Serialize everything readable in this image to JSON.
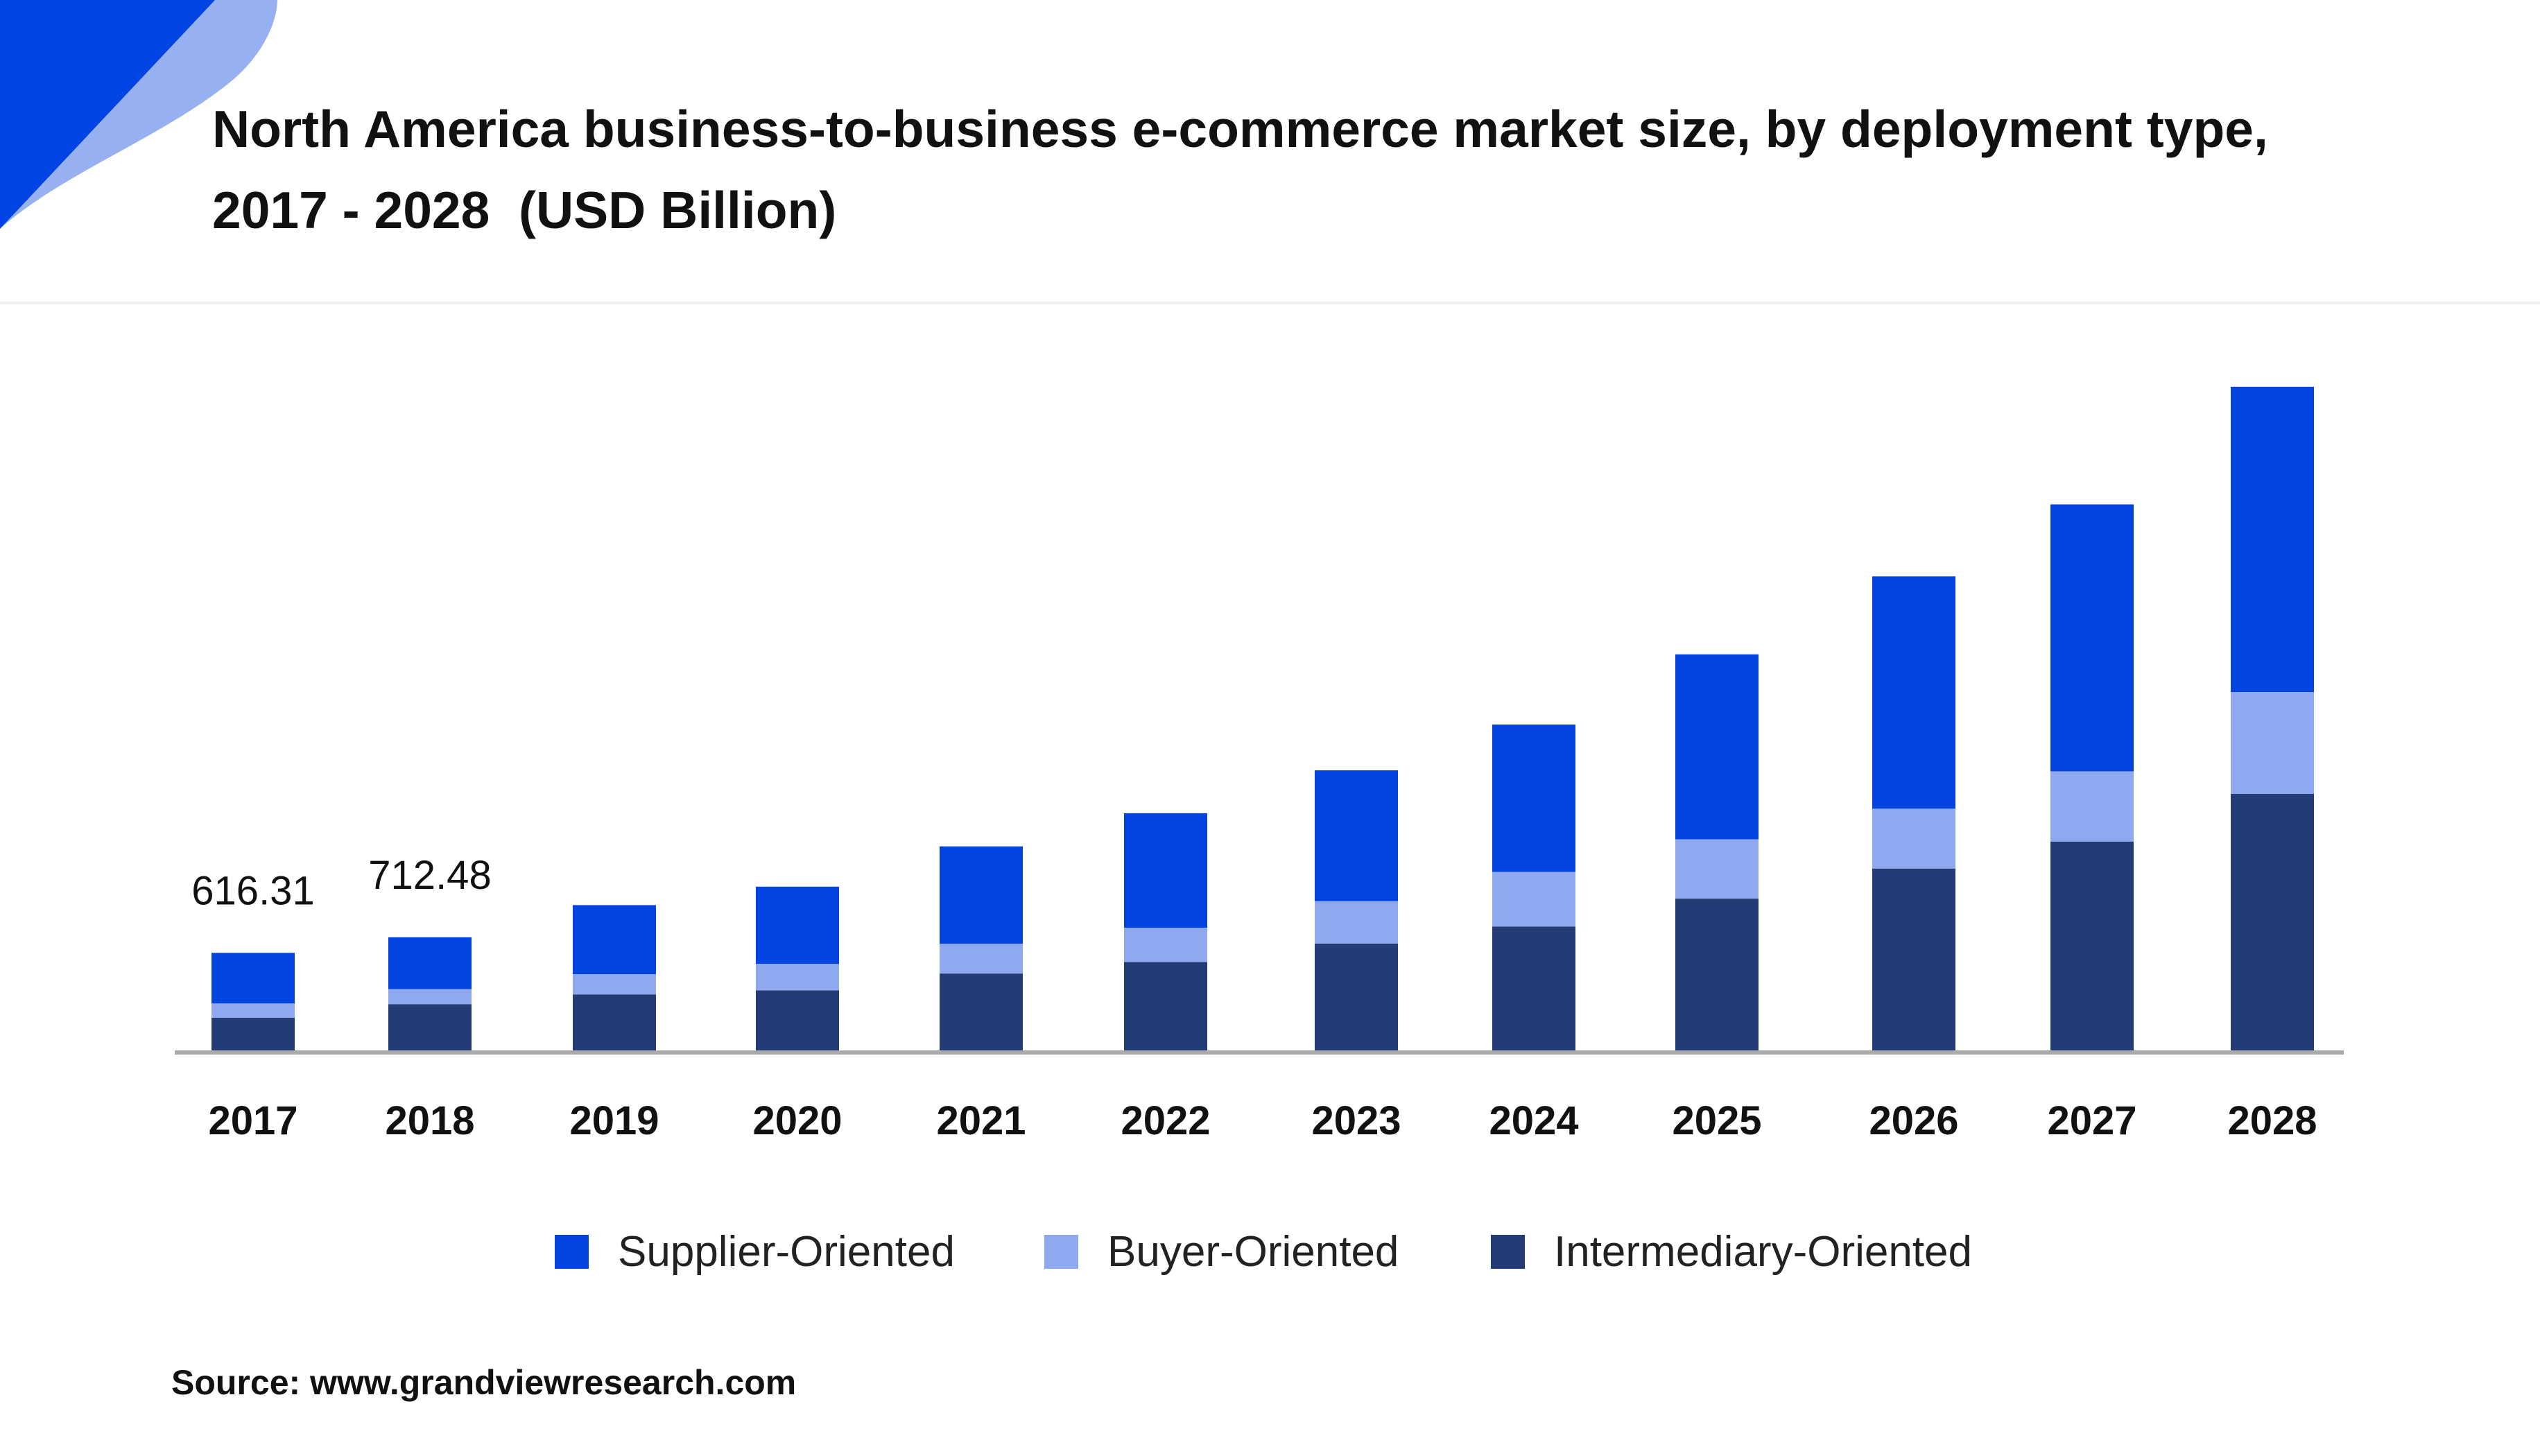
{
  "title_lines": [
    "North America business-to-business e-commerce market size, by deployment type,",
    "2017 - 2028  (USD Billion)"
  ],
  "source": "Source: www.grandviewresearch.com",
  "colors": {
    "supplier": "#0344e0",
    "buyer": "#8fa9f0",
    "intermediary": "#233c75",
    "accent_dark": "#0044e6",
    "accent_light": "#96b0f2",
    "axis": "#aaaaaa"
  },
  "chart_data": {
    "type": "bar",
    "stacked": true,
    "categories": [
      "2017",
      "2018",
      "2019",
      "2020",
      "2021",
      "2022",
      "2023",
      "2024",
      "2025",
      "2026",
      "2027",
      "2028"
    ],
    "series": [
      {
        "name": "Intermediary-Oriented",
        "values": [
          215,
          299,
          359,
          384,
          488,
          559,
          673,
          779,
          951,
          1137,
          1304,
          1599
        ]
      },
      {
        "name": "Buyer-Oriented",
        "values": [
          88,
          93,
          125,
          164,
          184,
          212,
          262,
          337,
          367,
          370,
          434,
          629
        ]
      },
      {
        "name": "Supplier-Oriented",
        "values": [
          313,
          320,
          427,
          477,
          602,
          708,
          809,
          911,
          1143,
          1436,
          1650,
          1887
        ]
      }
    ],
    "data_labels": [
      {
        "category": "2017",
        "text": "616.31"
      },
      {
        "category": "2018",
        "text": "712.48"
      }
    ],
    "ylim": [
      0,
      4200
    ],
    "grid": false,
    "legend": {
      "position": "bottom",
      "entries": [
        "Supplier-Oriented",
        "Buyer-Oriented",
        "Intermediary-Oriented"
      ]
    }
  }
}
